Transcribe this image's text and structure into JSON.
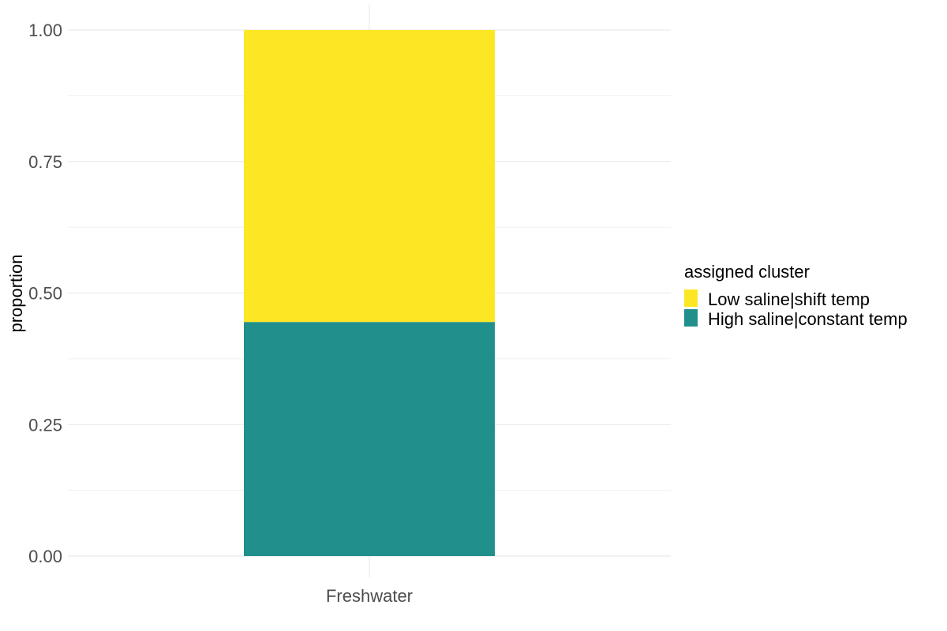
{
  "chart_data": {
    "type": "bar",
    "stacked": true,
    "categories": [
      "Freshwater"
    ],
    "series": [
      {
        "name": "High saline|constant temp",
        "values": [
          0.445
        ],
        "color": "#21908C"
      },
      {
        "name": "Low saline|shift temp",
        "values": [
          0.555
        ],
        "color": "#FDE725"
      }
    ],
    "xlabel": "",
    "ylabel": "proportion",
    "ylim": [
      0,
      1
    ],
    "yticks": [
      "0.00",
      "0.25",
      "0.50",
      "0.75",
      "1.00"
    ],
    "ytick_values": [
      0,
      0.25,
      0.5,
      0.75,
      1
    ],
    "grid": true,
    "legend": {
      "title": "assigned cluster",
      "position": "right",
      "entries": [
        {
          "label": "Low saline|shift temp",
          "color": "#FDE725"
        },
        {
          "label": "High saline|constant temp",
          "color": "#21908C"
        }
      ]
    }
  }
}
